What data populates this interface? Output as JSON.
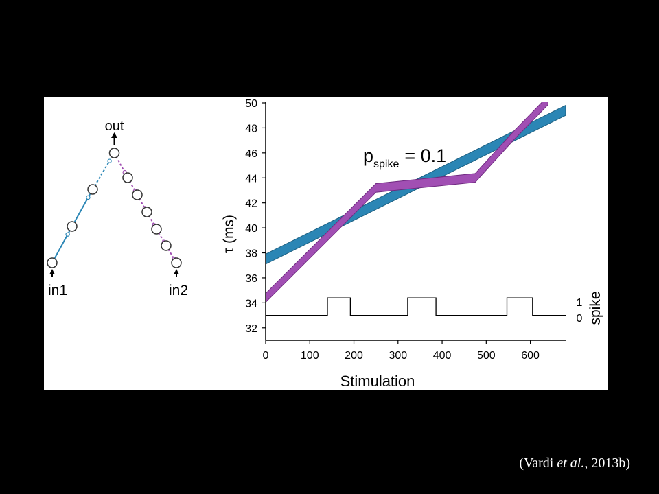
{
  "citation": {
    "open": "(Vardi ",
    "etal": "et al.",
    "rest": ", 2013b)"
  },
  "network_diagram": {
    "out_label": "out",
    "in1_label": "in1",
    "in2_label": "in2",
    "left_branch_neurons": 4,
    "right_branch_neurons": 6,
    "colors": {
      "left_branch": "#2b86b5",
      "right_branch": "#a14fb3",
      "node_stroke": "#333333"
    }
  },
  "chart_data": {
    "type": "line",
    "annotation": {
      "base": "p",
      "subscript": "spike",
      "text": "= 0.1"
    },
    "xlabel": "Stimulation",
    "ylabel": "τ (ms)",
    "xlim": [
      0,
      680
    ],
    "ylim": [
      31,
      50
    ],
    "xticks": [
      0,
      100,
      200,
      300,
      400,
      500,
      600
    ],
    "yticks": [
      32,
      34,
      36,
      38,
      40,
      42,
      44,
      46,
      48,
      50
    ],
    "series": [
      {
        "color": "#2b86b5",
        "edge_color": "#1d5f80",
        "x": [
          0,
          680
        ],
        "y": [
          37.5,
          49.4
        ],
        "band_halfwidth": 0.4
      },
      {
        "color": "#a14fb3",
        "edge_color": "#6f2a80",
        "x": [
          0,
          250,
          475,
          560,
          640
        ],
        "y": [
          34.4,
          43.2,
          44.0,
          47.3,
          50.2
        ],
        "band_halfwidth": 0.35
      }
    ],
    "spike_train": {
      "right_label": "spike",
      "level_labels": [
        "1",
        "0"
      ],
      "low_y": 33.0,
      "high_y": 34.4,
      "x_start": 0,
      "x_end": 680,
      "pulses": [
        [
          140,
          192
        ],
        [
          322,
          386
        ],
        [
          547,
          605
        ]
      ]
    }
  }
}
